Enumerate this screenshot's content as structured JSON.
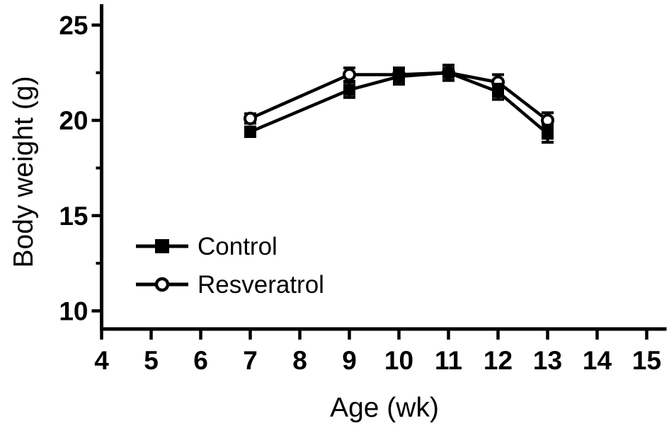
{
  "figure": {
    "background_color": "#ffffff",
    "foreground_color": "#000000"
  },
  "chart_data": {
    "type": "line",
    "title": "",
    "xlabel": "Age (wk)",
    "ylabel": "Body weight (g)",
    "x_ticks": [
      4,
      5,
      6,
      7,
      8,
      9,
      10,
      11,
      12,
      13,
      14,
      15
    ],
    "y_ticks": [
      10,
      15,
      20,
      25
    ],
    "y_minor_ticks": [
      12.5,
      17.5,
      22.5
    ],
    "xlim": [
      4,
      15.4
    ],
    "ylim": [
      9.05,
      26.1
    ],
    "grid": false,
    "legend_position": "inside-lower-left",
    "x": [
      7,
      9,
      10,
      11,
      12,
      13
    ],
    "series": [
      {
        "name": "Control",
        "marker": "filled-square",
        "color": "#000000",
        "values": [
          19.4,
          21.6,
          22.3,
          22.5,
          21.5,
          19.3
        ],
        "error": [
          0.25,
          0.4,
          0.4,
          0.4,
          0.4,
          0.45
        ]
      },
      {
        "name": "Resveratrol",
        "marker": "open-circle",
        "color": "#000000",
        "values": [
          20.1,
          22.4,
          22.4,
          22.5,
          22.0,
          20.0
        ],
        "error": [
          0.25,
          0.35,
          0.35,
          0.4,
          0.4,
          0.4
        ]
      }
    ]
  }
}
